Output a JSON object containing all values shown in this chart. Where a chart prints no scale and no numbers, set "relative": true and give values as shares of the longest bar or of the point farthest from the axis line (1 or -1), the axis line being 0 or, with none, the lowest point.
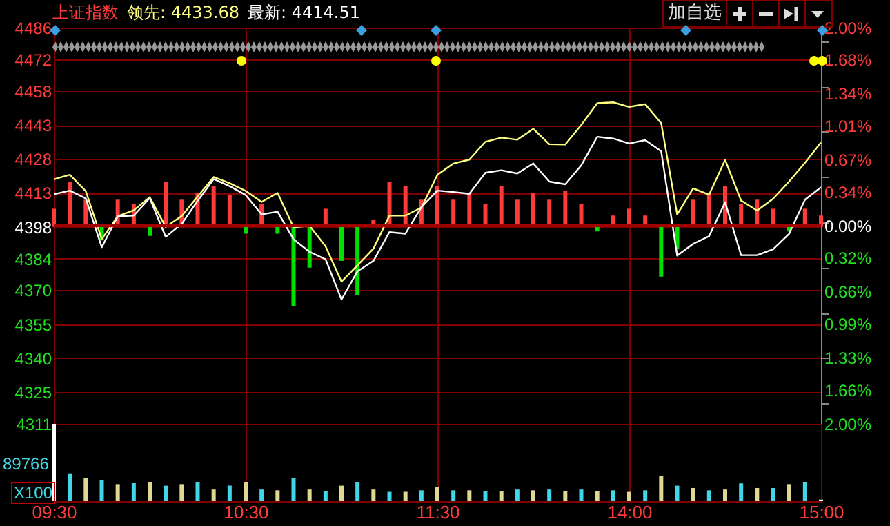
{
  "chart_data": [
    {
      "type": "line",
      "title": "上证指数",
      "annotations": [
        "领先: 4433.68",
        "最新: 4414.51",
        "加自选"
      ],
      "categories": [
        null,
        null,
        null,
        null,
        null,
        null,
        null,
        null,
        null,
        null,
        null,
        null,
        null,
        null,
        null,
        null,
        null,
        null,
        null,
        null,
        null,
        null,
        null,
        null,
        null,
        null,
        null,
        null,
        null,
        null,
        null,
        null,
        null,
        null,
        null,
        null,
        null,
        null,
        null,
        null,
        null,
        null,
        null,
        null,
        null,
        null,
        null,
        null,
        null
      ],
      "ylim": [
        4311,
        4486
      ],
      "yticks": [
        4311,
        4325,
        4340,
        4355,
        4370,
        4384,
        4398,
        4413,
        4428,
        4443,
        4458,
        4472,
        4486
      ],
      "y2lim": [
        -2,
        2
      ],
      "y2ticks": [
        {
          "value": -2,
          "label": "2.00%"
        },
        {
          "value": -1.66,
          "label": "1.66%"
        },
        {
          "value": -1.33,
          "label": "1.33%"
        },
        {
          "value": -0.99,
          "label": "0.99%"
        },
        {
          "value": -0.66,
          "label": "0.66%"
        },
        {
          "value": -0.32,
          "label": "0.32%"
        },
        {
          "value": 0,
          "label": "0.00%"
        },
        {
          "value": 0.34,
          "label": "0.34%"
        },
        {
          "value": 0.67,
          "label": "0.67%"
        },
        {
          "value": 1.01,
          "label": "1.01%"
        },
        {
          "value": 1.34,
          "label": "1.34%"
        },
        {
          "value": 1.68,
          "label": "1.68%"
        },
        {
          "value": 2,
          "label": "2.00%"
        }
      ],
      "grid": true,
      "tick_labels": "y",
      "ref_lines": [
        {
          "axis": "y2",
          "value": 0,
          "color": "#a00000"
        }
      ],
      "series": [
        {
          "type": "bar",
          "values": [
            8,
            20,
            12,
            -6,
            12,
            10,
            -4,
            20,
            12,
            15,
            18,
            14,
            -3,
            10,
            -3,
            -35,
            -18,
            8,
            -15,
            -30,
            3,
            20,
            18,
            12,
            18,
            12,
            15,
            10,
            18,
            12,
            15,
            12,
            16,
            10,
            -2,
            5,
            8,
            5,
            -22,
            -10,
            12,
            15,
            18,
            10,
            12,
            8,
            -2,
            8,
            5
          ],
          "base": [
            4398,
            4398,
            4398,
            4398,
            4398,
            4398,
            4398,
            4398,
            4398,
            4398,
            4398,
            4398,
            4398,
            4398,
            4398,
            4398,
            4398,
            4398,
            4398,
            4398,
            4398,
            4398,
            4398,
            4398,
            4398,
            4398,
            4398,
            4398,
            4398,
            4398,
            4398,
            4398,
            4398,
            4398,
            4398,
            4398,
            4398,
            4398,
            4398,
            4398,
            4398,
            4398,
            4398,
            4398,
            4398,
            4398,
            4398,
            4398,
            4398
          ],
          "colors": [
            "#ff3a3a",
            "#ff3a3a",
            "#ff3a3a",
            "#00e000",
            "#ff3a3a",
            "#ff3a3a",
            "#00e000",
            "#ff3a3a",
            "#ff3a3a",
            "#ff3a3a",
            "#ff3a3a",
            "#ff3a3a",
            "#00e000",
            "#ff3a3a",
            "#00e000",
            "#00e000",
            "#00e000",
            "#ff3a3a",
            "#00e000",
            "#00e000",
            "#ff3a3a",
            "#ff3a3a",
            "#ff3a3a",
            "#ff3a3a",
            "#ff3a3a",
            "#ff3a3a",
            "#ff3a3a",
            "#ff3a3a",
            "#ff3a3a",
            "#ff3a3a",
            "#ff3a3a",
            "#ff3a3a",
            "#ff3a3a",
            "#ff3a3a",
            "#00e000",
            "#ff3a3a",
            "#ff3a3a",
            "#ff3a3a",
            "#00e000",
            "#00e000",
            "#ff3a3a",
            "#ff3a3a",
            "#ff3a3a",
            "#ff3a3a",
            "#ff3a3a",
            "#ff3a3a",
            "#00e000",
            "#ff3a3a",
            "#ff3a3a"
          ]
        },
        {
          "color": "#ffff80",
          "values": [
            4419,
            4421,
            4413.8,
            4392.6,
            4402.7,
            4405.3,
            4411.1,
            4398,
            4402.8,
            4411.4,
            4420,
            4417.3,
            4413.9,
            4409,
            4413,
            4397.8,
            4398.5,
            4389.4,
            4373.8,
            4381,
            4388.4,
            4403,
            4403,
            4406.5,
            4421,
            4426,
            4427.7,
            4435.6,
            4437.4,
            4436.5,
            4441.3,
            4434.5,
            4434.4,
            4443,
            4452.6,
            4453,
            4451,
            4452.2,
            4443.8,
            4403.5,
            4415,
            4412.2,
            4427.6,
            4409.6,
            4405.2,
            4410.4,
            4418,
            4426.3,
            4435.3
          ]
        },
        {
          "color": "#ffffff",
          "values": [
            4412.4,
            4414,
            4410.6,
            4389,
            4402.7,
            4403,
            4410.7,
            4393.6,
            4399.3,
            4409.5,
            4419.1,
            4416,
            4412.1,
            4403.5,
            4404.7,
            4392.5,
            4387,
            4383.7,
            4365.9,
            4378.4,
            4383,
            4395.7,
            4395,
            4406.7,
            4414,
            4413.4,
            4412.6,
            4421.9,
            4423,
            4421.6,
            4426,
            4418,
            4416.8,
            4425.2,
            4437.8,
            4437,
            4434.8,
            4436.3,
            4431.4,
            4385.3,
            4390.5,
            4393.9,
            4408.9,
            4385.5,
            4385.5,
            4388.1,
            4394.9,
            4410,
            4415.5
          ]
        }
      ]
    },
    {
      "type": "bar",
      "relative": true,
      "annotations": [
        "89766",
        "X100"
      ],
      "grid": "x",
      "tick_labels": "x",
      "categories": [
        "09:30",
        null,
        null,
        null,
        null,
        null,
        null,
        null,
        null,
        null,
        null,
        null,
        "10:30",
        null,
        null,
        null,
        null,
        null,
        null,
        null,
        null,
        null,
        null,
        null,
        "11:30",
        null,
        null,
        null,
        null,
        null,
        null,
        null,
        null,
        null,
        null,
        null,
        "14:00",
        null,
        null,
        null,
        null,
        null,
        null,
        null,
        null,
        null,
        null,
        null,
        "15:00"
      ],
      "values": [
        1,
        0.36,
        0.3,
        0.27,
        0.22,
        0.24,
        0.25,
        0.2,
        0.22,
        0.25,
        0.15,
        0.2,
        0.25,
        0.15,
        0.14,
        0.3,
        0.15,
        0.13,
        0.2,
        0.25,
        0.15,
        0.12,
        0.12,
        0.14,
        0.18,
        0.14,
        0.14,
        0.13,
        0.13,
        0.15,
        0.14,
        0.15,
        0.13,
        0.15,
        0.13,
        0.14,
        0.12,
        0.14,
        0.33,
        0.2,
        0.17,
        0.14,
        0.15,
        0.23,
        0.17,
        0.17,
        0.22,
        0.25,
        0.02
      ],
      "colors": [
        "#ffffff",
        "#40d8e8",
        "#e0d890",
        "#40d8e8",
        "#e0d890",
        "#40d8e8",
        "#e0d890",
        "#40d8e8",
        "#e0d890",
        "#40d8e8",
        "#e0d890",
        "#40d8e8",
        "#e0d890",
        "#40d8e8",
        "#e0d890",
        "#40d8e8",
        "#e0d890",
        "#40d8e8",
        "#e0d890",
        "#40d8e8",
        "#e0d890",
        "#40d8e8",
        "#e0d890",
        "#40d8e8",
        "#e0d890",
        "#40d8e8",
        "#e0d890",
        "#40d8e8",
        "#e0d890",
        "#40d8e8",
        "#e0d890",
        "#40d8e8",
        "#e0d890",
        "#40d8e8",
        "#e0d890",
        "#40d8e8",
        "#e0d890",
        "#40d8e8",
        "#e0d890",
        "#40d8e8",
        "#e0d890",
        "#40d8e8",
        "#e0d890",
        "#40d8e8",
        "#e0d890",
        "#40d8e8",
        "#e0d890",
        "#40d8e8",
        "#ffffff"
      ]
    }
  ]
}
